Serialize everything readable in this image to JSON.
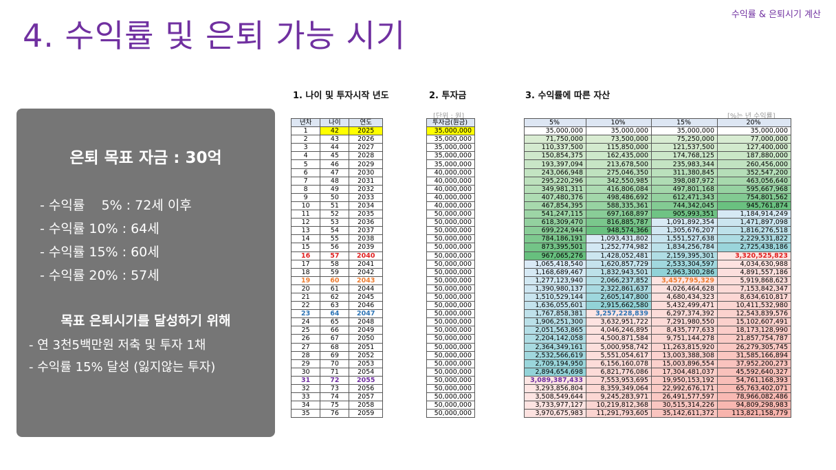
{
  "header": {
    "top_right": "수익률 & 은퇴시기 계산",
    "title": "4. 수익률 및 은퇴 가능 시기"
  },
  "panel": {
    "goal": "은퇴 목표 자금 : 30억",
    "lines": [
      "- 수익률    5% : 72세 이후",
      "- 수익률 10% : 64세",
      "- 수익률 15% : 60세",
      "- 수익률 20% : 57세"
    ],
    "subtitle": "목표 은퇴시기를 달성하기 위해",
    "actions": [
      "- 연 3천5백만원 저축 및 투자 1채",
      "- 수익률 15% 달성 (잃지않는 투자)"
    ]
  },
  "sections": {
    "s1": "1. 나이 및 투자시작 년도",
    "s2": "2. 투자금",
    "s3": "3. 수익률에 따른 자산"
  },
  "units": {
    "invest": "[단위 : 원]",
    "rate": "[%는 년 수익률]"
  },
  "colors": {
    "title": "#7030a0",
    "panel": "#767676",
    "highlight_yellow": "#ffff00",
    "green_light": "#e2f0d9",
    "green_dark": "#63be7b",
    "cyan_light": "#ddebf7",
    "cyan_dark": "#8fd2d6",
    "pink_light": "#fde6e4",
    "pink_dark": "#f8b4ad"
  },
  "table1": {
    "headers": [
      "년차",
      "나이",
      "연도"
    ],
    "rows": [
      [
        "1",
        "42",
        "2025"
      ],
      [
        "2",
        "43",
        "2026"
      ],
      [
        "3",
        "44",
        "2027"
      ],
      [
        "4",
        "45",
        "2028"
      ],
      [
        "5",
        "46",
        "2029"
      ],
      [
        "6",
        "47",
        "2030"
      ],
      [
        "7",
        "48",
        "2031"
      ],
      [
        "8",
        "49",
        "2032"
      ],
      [
        "9",
        "50",
        "2033"
      ],
      [
        "10",
        "51",
        "2034"
      ],
      [
        "11",
        "52",
        "2035"
      ],
      [
        "12",
        "53",
        "2036"
      ],
      [
        "13",
        "54",
        "2037"
      ],
      [
        "14",
        "55",
        "2038"
      ],
      [
        "15",
        "56",
        "2039"
      ],
      [
        "16",
        "57",
        "2040"
      ],
      [
        "17",
        "58",
        "2041"
      ],
      [
        "18",
        "59",
        "2042"
      ],
      [
        "19",
        "60",
        "2043"
      ],
      [
        "20",
        "61",
        "2044"
      ],
      [
        "21",
        "62",
        "2045"
      ],
      [
        "22",
        "63",
        "2046"
      ],
      [
        "23",
        "64",
        "2047"
      ],
      [
        "24",
        "65",
        "2048"
      ],
      [
        "25",
        "66",
        "2049"
      ],
      [
        "26",
        "67",
        "2050"
      ],
      [
        "27",
        "68",
        "2051"
      ],
      [
        "28",
        "69",
        "2052"
      ],
      [
        "29",
        "70",
        "2053"
      ],
      [
        "30",
        "71",
        "2054"
      ],
      [
        "31",
        "72",
        "2055"
      ],
      [
        "32",
        "73",
        "2056"
      ],
      [
        "33",
        "74",
        "2057"
      ],
      [
        "34",
        "75",
        "2058"
      ],
      [
        "35",
        "76",
        "2059"
      ]
    ],
    "row_colors": {
      "15": "red",
      "18": "orange",
      "22": "blue",
      "30": "purple"
    }
  },
  "table2": {
    "header": "투자금(원금)",
    "rows": [
      "35,000,000",
      "35,000,000",
      "35,000,000",
      "35,000,000",
      "35,000,000",
      "40,000,000",
      "40,000,000",
      "40,000,000",
      "40,000,000",
      "40,000,000",
      "50,000,000",
      "50,000,000",
      "50,000,000",
      "50,000,000",
      "50,000,000",
      "50,000,000",
      "50,000,000",
      "50,000,000",
      "50,000,000",
      "50,000,000",
      "50,000,000",
      "50,000,000",
      "50,000,000",
      "50,000,000",
      "50,000,000",
      "50,000,000",
      "50,000,000",
      "50,000,000",
      "50,000,000",
      "50,000,000",
      "50,000,000",
      "50,000,000",
      "50,000,000",
      "50,000,000",
      "50,000,000"
    ]
  },
  "table3": {
    "headers": [
      "5%",
      "10%",
      "15%",
      "20%"
    ],
    "rows": [
      [
        "35,000,000",
        "35,000,000",
        "35,000,000",
        "35,000,000"
      ],
      [
        "71,750,000",
        "73,500,000",
        "75,250,000",
        "77,000,000"
      ],
      [
        "110,337,500",
        "115,850,000",
        "121,537,500",
        "127,400,000"
      ],
      [
        "150,854,375",
        "162,435,000",
        "174,768,125",
        "187,880,000"
      ],
      [
        "193,397,094",
        "213,678,500",
        "235,983,344",
        "260,456,000"
      ],
      [
        "243,066,948",
        "275,046,350",
        "311,380,845",
        "352,547,200"
      ],
      [
        "295,220,296",
        "342,550,985",
        "398,087,972",
        "463,056,640"
      ],
      [
        "349,981,311",
        "416,806,084",
        "497,801,168",
        "595,667,968"
      ],
      [
        "407,480,376",
        "498,486,692",
        "612,471,343",
        "754,801,562"
      ],
      [
        "467,854,395",
        "588,335,361",
        "744,342,045",
        "945,761,874"
      ],
      [
        "541,247,115",
        "697,168,897",
        "905,993,351",
        "1,184,914,249"
      ],
      [
        "618,309,470",
        "816,885,787",
        "1,091,892,354",
        "1,471,897,098"
      ],
      [
        "699,224,944",
        "948,574,366",
        "1,305,676,207",
        "1,816,276,518"
      ],
      [
        "784,186,191",
        "1,093,431,802",
        "1,551,527,638",
        "2,229,531,822"
      ],
      [
        "873,395,501",
        "1,252,774,982",
        "1,834,256,784",
        "2,725,438,186"
      ],
      [
        "967,065,276",
        "1,428,052,481",
        "2,159,395,301",
        "3,320,525,823"
      ],
      [
        "1,065,418,540",
        "1,620,857,729",
        "2,533,304,597",
        "4,034,630,988"
      ],
      [
        "1,168,689,467",
        "1,832,943,501",
        "2,963,300,286",
        "4,891,557,186"
      ],
      [
        "1,277,123,940",
        "2,066,237,852",
        "3,457,795,329",
        "5,919,868,623"
      ],
      [
        "1,390,980,137",
        "2,322,861,637",
        "4,026,464,628",
        "7,153,842,347"
      ],
      [
        "1,510,529,144",
        "2,605,147,800",
        "4,680,434,323",
        "8,634,610,817"
      ],
      [
        "1,636,055,601",
        "2,915,662,580",
        "5,432,499,471",
        "10,411,532,980"
      ],
      [
        "1,767,858,381",
        "3,257,228,839",
        "6,297,374,392",
        "12,543,839,576"
      ],
      [
        "1,906,251,300",
        "3,632,951,722",
        "7,291,980,550",
        "15,102,607,491"
      ],
      [
        "2,051,563,865",
        "4,046,246,895",
        "8,435,777,633",
        "18,173,128,990"
      ],
      [
        "2,204,142,058",
        "4,500,871,584",
        "9,751,144,278",
        "21,857,754,787"
      ],
      [
        "2,364,349,161",
        "5,000,958,742",
        "11,263,815,920",
        "26,279,305,745"
      ],
      [
        "2,532,566,619",
        "5,551,054,617",
        "13,003,388,308",
        "31,585,166,894"
      ],
      [
        "2,709,194,950",
        "6,156,160,078",
        "15,003,896,554",
        "37,952,200,273"
      ],
      [
        "2,894,654,698",
        "6,821,776,086",
        "17,304,481,037",
        "45,592,640,327"
      ],
      [
        "3,089,387,433",
        "7,553,953,695",
        "19,950,153,192",
        "54,761,168,393"
      ],
      [
        "3,293,856,804",
        "8,359,349,064",
        "22,992,676,171",
        "65,763,402,071"
      ],
      [
        "3,508,549,644",
        "9,245,283,971",
        "26,491,577,597",
        "78,966,082,486"
      ],
      [
        "3,733,977,127",
        "10,219,812,368",
        "30,515,314,226",
        "94,809,298,983"
      ],
      [
        "3,970,675,983",
        "11,291,793,605",
        "35,142,611,372",
        "113,821,158,779"
      ]
    ],
    "highlights": [
      {
        "row": 15,
        "col": 3,
        "color": "red"
      },
      {
        "row": 18,
        "col": 2,
        "color": "orange"
      },
      {
        "row": 22,
        "col": 1,
        "color": "blue"
      },
      {
        "row": 30,
        "col": 0,
        "color": "purple"
      }
    ]
  }
}
